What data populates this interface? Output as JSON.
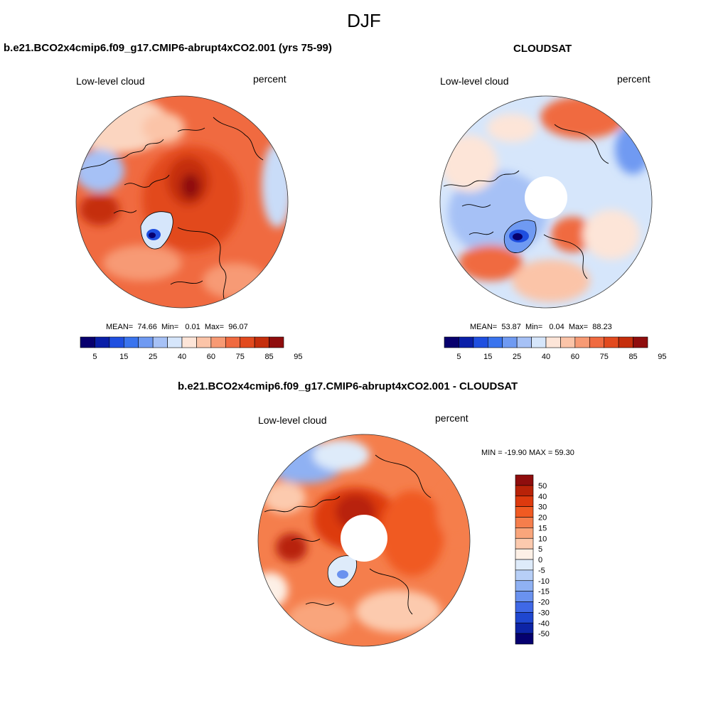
{
  "figure": {
    "title": "DJF"
  },
  "panels": [
    {
      "id": "model",
      "title": "b.e21.BCO2x4cmip6.f09_g17.CMIP6-abrupt4xCO2.001 (yrs 75-99)",
      "left_label": "Low-level cloud",
      "right_label": "percent",
      "stats": {
        "mean_label": "MEAN=",
        "mean": "74.66",
        "min_label": "Min=",
        "min": "0.01",
        "max_label": "Max=",
        "max": "96.07"
      },
      "colorbar_ticks": [
        "5",
        "15",
        "25",
        "40",
        "60",
        "75",
        "85",
        "95"
      ]
    },
    {
      "id": "obs",
      "title": "CLOUDSAT",
      "left_label": "Low-level cloud",
      "right_label": "percent",
      "stats": {
        "mean_label": "MEAN=",
        "mean": "53.87",
        "min_label": "Min=",
        "min": "0.04",
        "max_label": "Max=",
        "max": "88.23"
      },
      "colorbar_ticks": [
        "5",
        "15",
        "25",
        "40",
        "60",
        "75",
        "85",
        "95"
      ]
    },
    {
      "id": "diff",
      "title": "b.e21.BCO2x4cmip6.f09_g17.CMIP6-abrupt4xCO2.001 - CLOUDSAT",
      "left_label": "Low-level cloud",
      "right_label": "percent",
      "stats_text": "MIN = -19.90 MAX =  59.30",
      "colorbar_ticks": [
        "50",
        "40",
        "30",
        "20",
        "15",
        "10",
        "5",
        "0",
        "-5",
        "-10",
        "-15",
        "-20",
        "-30",
        "-40",
        "-50"
      ]
    }
  ],
  "colors": {
    "abs_scale": [
      "#08006e",
      "#0a1fa8",
      "#1f4fe0",
      "#3a74ee",
      "#6f9af2",
      "#a6c1f6",
      "#d6e6fb",
      "#fde5d8",
      "#fbc4a8",
      "#f79a74",
      "#f06a40",
      "#e24a1e",
      "#c52e0c",
      "#8f0d0d"
    ],
    "diff_scale": [
      "#8f0d0d",
      "#b82208",
      "#dd3a0e",
      "#f05a22",
      "#f57e4c",
      "#f9a57b",
      "#fccaae",
      "#fdf0e6",
      "#deebfa",
      "#b7cff7",
      "#8fb1f3",
      "#6a92ef",
      "#3f68e6",
      "#1f47d0",
      "#0d24a6",
      "#05006f"
    ]
  }
}
